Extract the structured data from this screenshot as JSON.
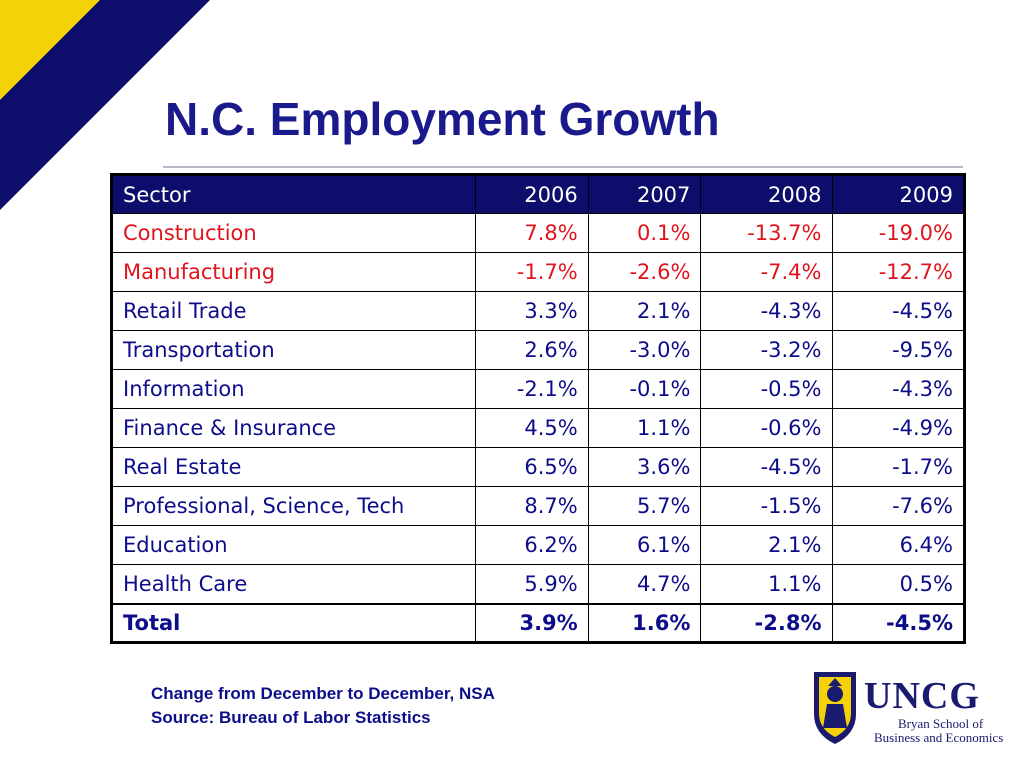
{
  "slide": {
    "title": "N.C. Employment Growth",
    "footnote_line1": "Change from December to December, NSA",
    "footnote_line2": "Source:  Bureau of Labor Statistics"
  },
  "logo": {
    "name": "UNCG",
    "subtitle_line1": "Bryan School of",
    "subtitle_line2": "Business and Economics"
  },
  "colors": {
    "title": "#1a1a8c",
    "header_bg": "#0d0d6b",
    "text": "#0d0d8a",
    "highlight_rows": "#e0141c",
    "corner_yellow": "#f5d10a",
    "corner_navy": "#0d0d6b"
  },
  "chart_data": {
    "type": "table",
    "title": "N.C. Employment Growth",
    "columns": [
      "Sector",
      "2006",
      "2007",
      "2008",
      "2009"
    ],
    "rows": [
      {
        "sector": "Construction",
        "values": [
          "7.8%",
          "0.1%",
          "-13.7%",
          "-19.0%"
        ],
        "highlight": true
      },
      {
        "sector": "Manufacturing",
        "values": [
          "-1.7%",
          "-2.6%",
          "-7.4%",
          "-12.7%"
        ],
        "highlight": true
      },
      {
        "sector": "Retail Trade",
        "values": [
          "3.3%",
          "2.1%",
          "-4.3%",
          "-4.5%"
        ]
      },
      {
        "sector": "Transportation",
        "values": [
          "2.6%",
          "-3.0%",
          "-3.2%",
          "-9.5%"
        ]
      },
      {
        "sector": "Information",
        "values": [
          "-2.1%",
          "-0.1%",
          "-0.5%",
          "-4.3%"
        ]
      },
      {
        "sector": "Finance & Insurance",
        "values": [
          "4.5%",
          "1.1%",
          "-0.6%",
          "-4.9%"
        ]
      },
      {
        "sector": "Real Estate",
        "values": [
          "6.5%",
          "3.6%",
          "-4.5%",
          "-1.7%"
        ]
      },
      {
        "sector": "Professional, Science, Tech",
        "values": [
          "8.7%",
          "5.7%",
          "-1.5%",
          "-7.6%"
        ]
      },
      {
        "sector": "Education",
        "values": [
          "6.2%",
          "6.1%",
          "2.1%",
          "6.4%"
        ]
      },
      {
        "sector": "Health Care",
        "values": [
          "5.9%",
          "4.7%",
          "1.1%",
          "0.5%"
        ]
      },
      {
        "sector": "Total",
        "values": [
          "3.9%",
          "1.6%",
          "-2.8%",
          "-4.5%"
        ],
        "total": true
      }
    ]
  }
}
